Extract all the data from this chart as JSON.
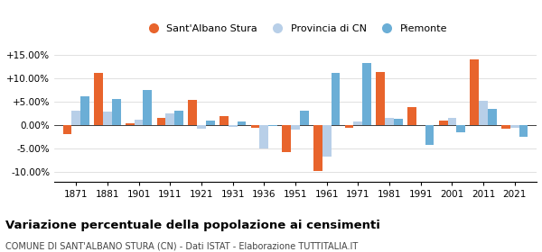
{
  "years": [
    1871,
    1881,
    1901,
    1911,
    1921,
    1931,
    1936,
    1951,
    1961,
    1971,
    1981,
    1991,
    2001,
    2011,
    2021
  ],
  "sant_albano": [
    -2.0,
    11.2,
    0.3,
    1.5,
    5.3,
    2.0,
    -0.5,
    -5.8,
    -9.8,
    -0.5,
    11.4,
    3.9,
    0.9,
    14.0,
    -0.8
  ],
  "provincia_cn": [
    3.0,
    2.8,
    1.1,
    2.5,
    -0.7,
    -0.3,
    -5.0,
    -1.0,
    -6.8,
    0.7,
    1.5,
    0.0,
    1.6,
    5.2,
    -0.5
  ],
  "piemonte": [
    6.2,
    5.5,
    7.5,
    3.0,
    1.0,
    0.7,
    -0.2,
    3.0,
    11.1,
    13.2,
    1.4,
    -4.3,
    -1.5,
    3.5,
    -2.5
  ],
  "color_sant_albano": "#e8642c",
  "color_provincia": "#b8cfe8",
  "color_piemonte": "#6baed6",
  "title": "Variazione percentuale della popolazione ai censimenti",
  "subtitle": "COMUNE DI SANT'ALBANO STURA (CN) - Dati ISTAT - Elaborazione TUTTITALIA.IT",
  "ylim": [
    -12.0,
    17.0
  ],
  "yticks": [
    -10.0,
    -5.0,
    0.0,
    5.0,
    10.0,
    15.0
  ],
  "ytick_labels": [
    "-10.00%",
    "-5.00%",
    "0.00%",
    "+5.00%",
    "+10.00%",
    "+15.00%"
  ],
  "legend_labels": [
    "Sant'Albano Stura",
    "Provincia di CN",
    "Piemonte"
  ],
  "bar_width": 0.28
}
